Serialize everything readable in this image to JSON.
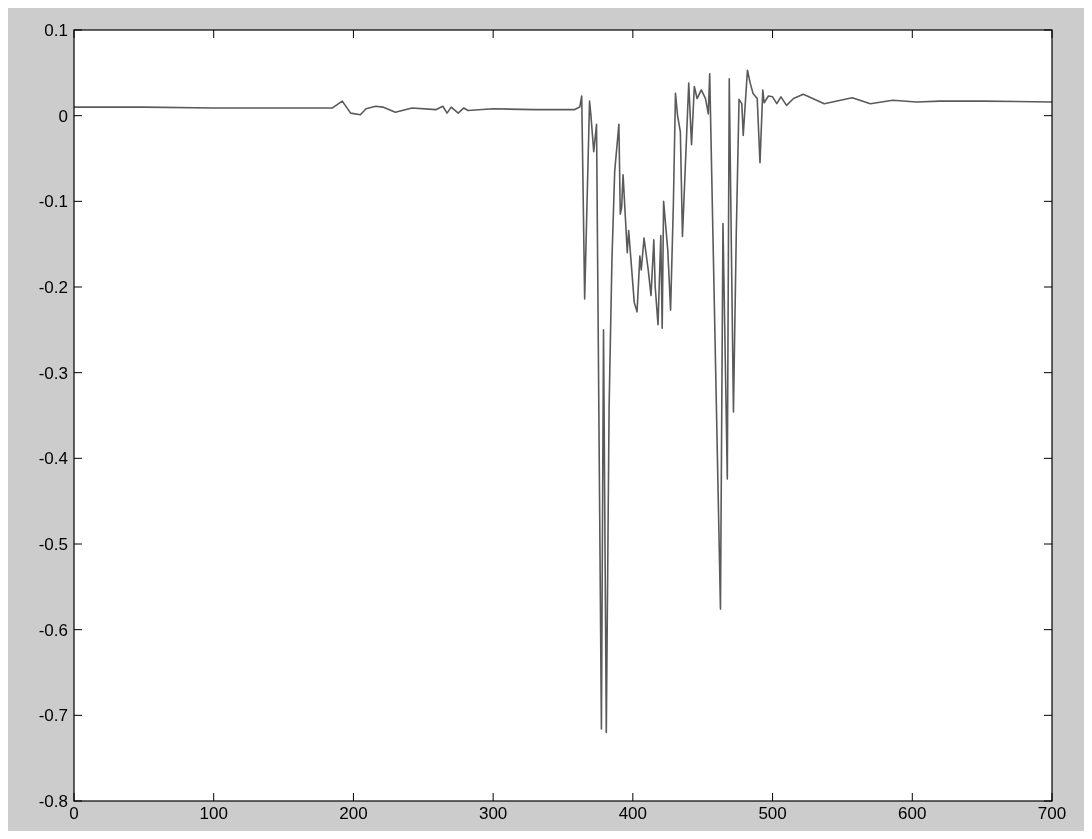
{
  "chart_data": {
    "type": "line",
    "xlim": [
      0,
      700
    ],
    "xticks": [
      0,
      100,
      200,
      300,
      400,
      500,
      600,
      700
    ],
    "ylim": [
      -0.8,
      0.1
    ],
    "yticks": [
      -0.8,
      -0.7,
      -0.6,
      -0.5,
      -0.4,
      -0.3,
      -0.2,
      -0.1,
      0,
      0.1
    ],
    "grid": false,
    "series": [
      {
        "color": "#5a5a5a",
        "x": [
          0,
          50,
          100,
          150,
          185,
          192,
          198,
          205,
          209,
          216,
          221,
          230,
          242,
          259,
          264,
          267,
          270,
          275,
          279,
          282,
          300,
          330,
          358,
          362,
          363.4,
          365.5,
          369,
          370,
          372,
          374,
          377.5,
          379,
          381,
          383,
          385,
          387,
          390,
          391,
          392,
          393,
          396,
          397,
          401,
          403,
          405,
          406,
          408,
          411,
          413,
          415,
          416,
          418,
          420,
          421,
          422,
          425,
          427,
          429,
          430.5,
          432,
          434,
          435.5,
          440,
          442,
          444,
          446,
          449,
          452,
          454,
          455,
          462.7,
          464.5,
          467.6,
          469,
          472,
          474,
          476,
          478,
          479,
          482,
          484,
          486,
          489,
          491,
          493,
          494,
          497,
          500,
          503,
          506,
          510,
          515,
          522,
          537,
          557,
          570,
          586,
          603,
          620,
          650,
          700
        ],
        "values": [
          0.01,
          0.01,
          0.009,
          0.009,
          0.009,
          0.017,
          0.003,
          0.001,
          0.008,
          0.011,
          0.01,
          0.004,
          0.009,
          0.007,
          0.011,
          0.003,
          0.01,
          0.003,
          0.009,
          0.006,
          0.008,
          0.007,
          0.007,
          0.01,
          0.023,
          -0.214,
          0.017,
          0.0,
          -0.042,
          -0.01,
          -0.716,
          -0.25,
          -0.72,
          -0.34,
          -0.17,
          -0.065,
          -0.01,
          -0.115,
          -0.107,
          -0.069,
          -0.16,
          -0.134,
          -0.218,
          -0.229,
          -0.164,
          -0.18,
          -0.143,
          -0.18,
          -0.21,
          -0.145,
          -0.2,
          -0.244,
          -0.14,
          -0.248,
          -0.1,
          -0.157,
          -0.227,
          -0.103,
          0.026,
          0.0,
          -0.019,
          -0.141,
          0.038,
          -0.034,
          0.034,
          0.02,
          0.03,
          0.02,
          0.002,
          0.049,
          -0.576,
          -0.126,
          -0.424,
          0.043,
          -0.346,
          -0.14,
          0.019,
          0.014,
          -0.023,
          0.053,
          0.038,
          0.026,
          0.02,
          -0.055,
          0.03,
          0.015,
          0.023,
          0.022,
          0.014,
          0.022,
          0.012,
          0.02,
          0.025,
          0.014,
          0.021,
          0.014,
          0.018,
          0.016,
          0.017,
          0.017,
          0.016
        ]
      }
    ]
  }
}
